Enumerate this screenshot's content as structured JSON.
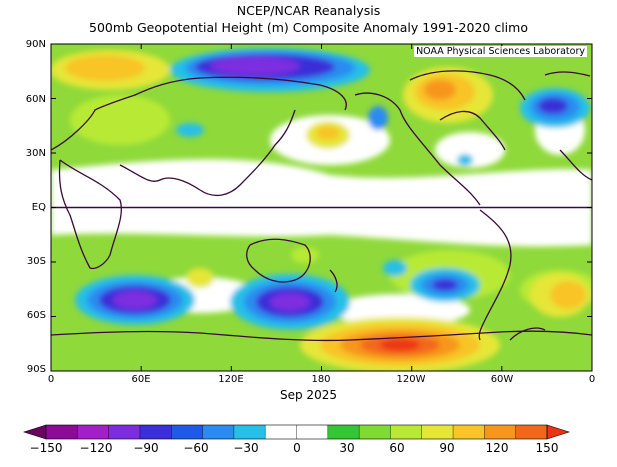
{
  "title_line1": "NCEP/NCAR Reanalysis",
  "title_line2": "500mb Geopotential Height (m) Composite Anomaly 1991-2020 climo",
  "credit": "NOAA Physical Sciences Laboratory",
  "period": "Sep 2025",
  "lat_ticks": [
    "90N",
    "60N",
    "30N",
    "EQ",
    "30S",
    "60S",
    "90S"
  ],
  "lon_ticks": [
    "0",
    "60E",
    "120E",
    "180",
    "120W",
    "60W",
    "0"
  ],
  "colorbar_ticks": [
    "−150",
    "−120",
    "−90",
    "−60",
    "−30",
    "0",
    "30",
    "60",
    "90",
    "120",
    "150"
  ],
  "colorbar_colors": [
    "#6a005f",
    "#8b0a96",
    "#a31fc8",
    "#7d2de0",
    "#3a2fd8",
    "#1e5ae6",
    "#2a8cf0",
    "#25bfe8",
    "#ffffff",
    "#ffffff",
    "#35c635",
    "#7fdb32",
    "#b8ea35",
    "#e6e637",
    "#f8c428",
    "#f7961d",
    "#f2671a",
    "#eb3414"
  ],
  "colors": {
    "anomaly_zero": "#ffffff",
    "background_field": "#8fd93a",
    "coastline": "#3a0b3a"
  }
}
